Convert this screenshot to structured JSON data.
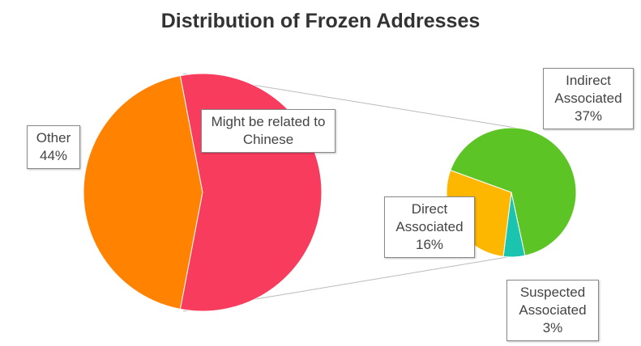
{
  "chart_data": {
    "type": "pie-of-pie",
    "title": "Distribution of Frozen Addresses",
    "main": {
      "categories": [
        "Other",
        "Might be related to Chinese"
      ],
      "values": [
        44,
        56
      ],
      "value_labels": [
        "44%",
        null
      ],
      "colors": [
        "#ff8200",
        "#f83c5e"
      ]
    },
    "secondary": {
      "categories": [
        "Indirect Associated",
        "Suspected Associated",
        "Direct Associated"
      ],
      "values": [
        37,
        3,
        16
      ],
      "value_labels": [
        "37%",
        "3%",
        "16%"
      ],
      "colors": [
        "#5cc425",
        "#1ac4ae",
        "#fdb700"
      ]
    }
  }
}
